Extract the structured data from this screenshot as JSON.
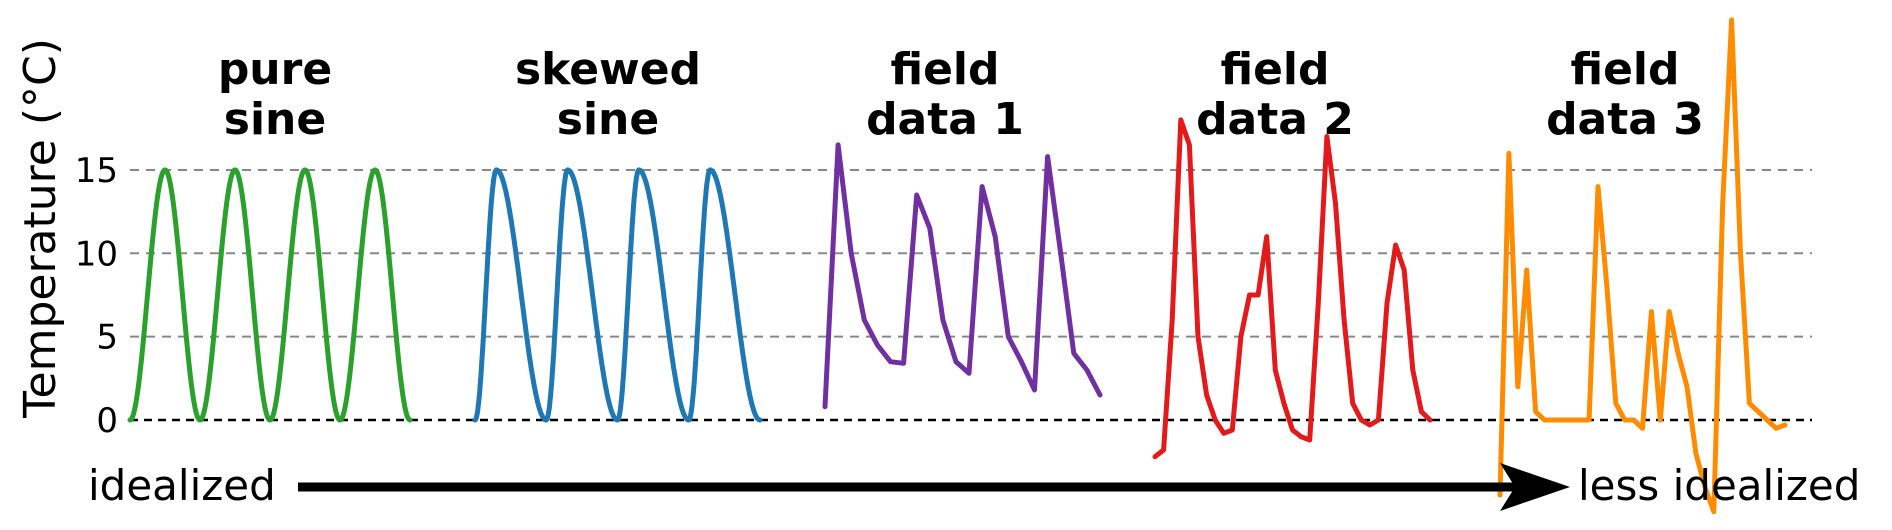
{
  "chart_data": {
    "type": "line",
    "ylabel": "Temperature (°C)",
    "yticks": [
      0,
      5,
      10,
      15
    ],
    "ylim": [
      -5,
      25
    ],
    "grid": true,
    "arrow": {
      "left_label": "idealized",
      "right_label": "less idealized"
    },
    "panels": [
      {
        "title_lines": [
          "pure",
          "sine"
        ],
        "color": "#2ca02c",
        "values": [
          0,
          15,
          0,
          15,
          0,
          15,
          0,
          15,
          0
        ]
      },
      {
        "title_lines": [
          "skewed",
          "sine"
        ],
        "color": "#1f77b4",
        "values": [
          0,
          15,
          0,
          15,
          0,
          15,
          0,
          15,
          0
        ]
      },
      {
        "title_lines": [
          "field",
          "data 1"
        ],
        "color": "#7030a0",
        "values": [
          0.8,
          16.5,
          10,
          6,
          4.5,
          3.5,
          3.4,
          13.5,
          11.5,
          6,
          3.5,
          2.8,
          14,
          11,
          5,
          3.5,
          1.8,
          15.8,
          10,
          4,
          3,
          1.5
        ]
      },
      {
        "title_lines": [
          "field",
          "data 2"
        ],
        "color": "#e31a1c",
        "values": [
          -2.2,
          -1.8,
          6,
          18,
          16.5,
          5,
          1.5,
          0,
          -0.8,
          -0.6,
          5,
          7.5,
          7.5,
          11,
          3,
          1,
          -0.6,
          -1,
          -1.2,
          7,
          17,
          13,
          6,
          1,
          0,
          -0.3,
          0,
          7,
          10.5,
          9,
          3,
          0.5,
          0
        ]
      },
      {
        "title_lines": [
          "field",
          "data 3"
        ],
        "color": "#ff8c00",
        "values": [
          -4.5,
          16,
          2,
          9,
          0.5,
          0,
          0,
          0,
          0,
          0,
          0,
          14,
          8,
          1,
          0,
          0,
          -0.5,
          6.5,
          0,
          6.5,
          4,
          2,
          -2,
          -4,
          -5.5,
          13,
          24,
          10,
          1,
          0.5,
          0,
          -0.5,
          -0.3
        ]
      }
    ]
  }
}
